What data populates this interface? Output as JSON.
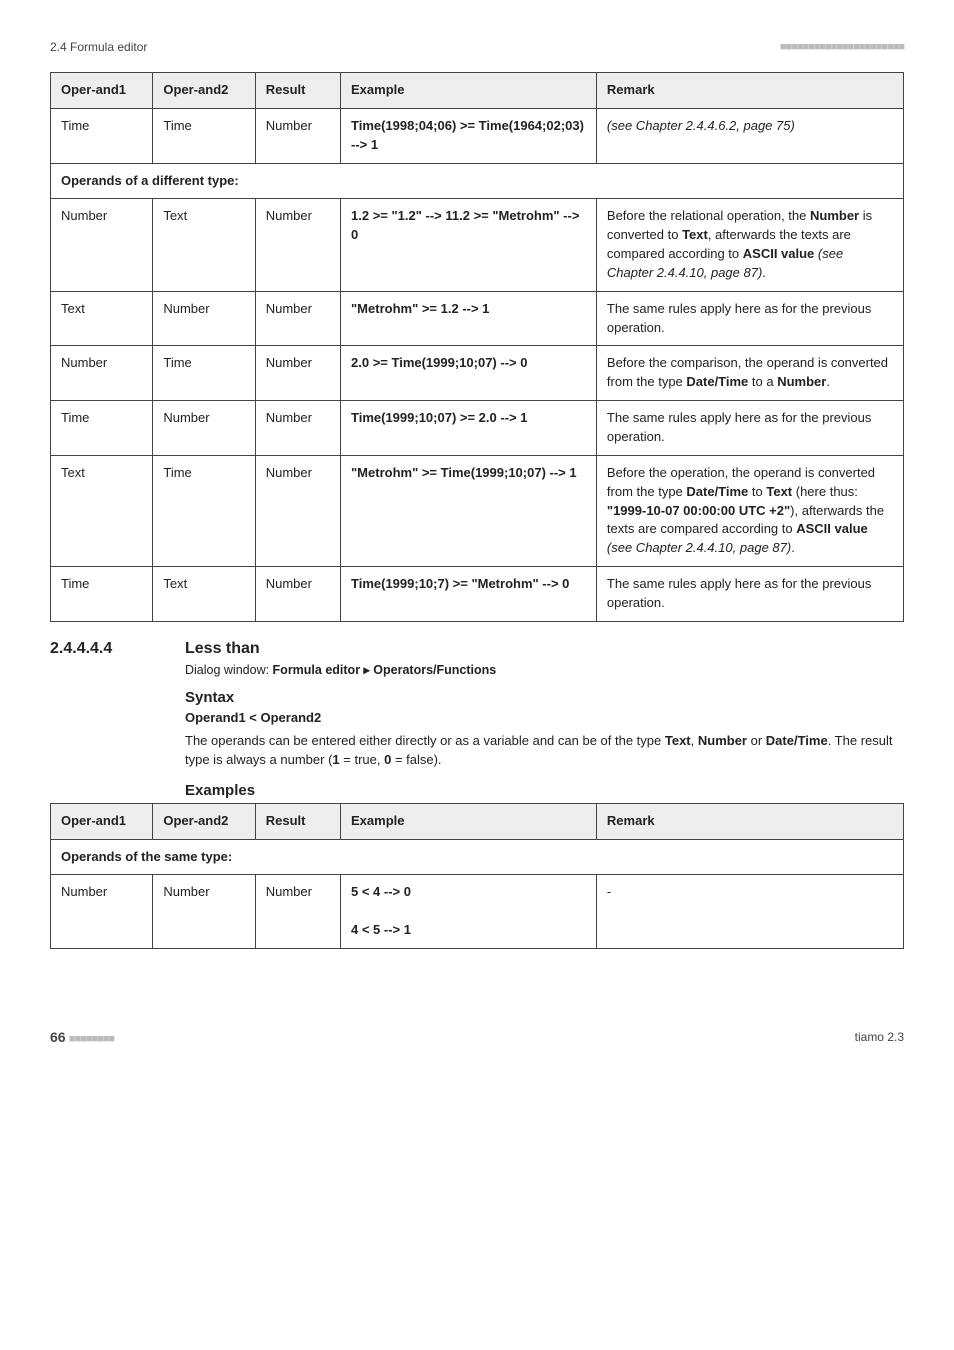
{
  "header": {
    "left": "2.4 Formula editor",
    "squares": "■■■■■■■■■■■■■■■■■■■■■■"
  },
  "table1": {
    "headers": {
      "op1": "Oper-and1",
      "op2": "Oper-and2",
      "result": "Result",
      "example": "Example",
      "remark": "Remark"
    },
    "rows": [
      {
        "op1": "Time",
        "op2": "Time",
        "result": "Number",
        "example_html": "<span class='bold'>Time(1998;04;06) &gt;= Time(1964;02;03) --&gt; 1</span>",
        "remark_html": "<span class='italic'>(see Chapter 2.4.4.6.2, page 75)</span>"
      }
    ],
    "section2": "Operands of a different type:",
    "rows2": [
      {
        "op1": "Number",
        "op2": "Text",
        "result": "Number",
        "example_html": "<span class='bold'>1.2 &gt;= \"1.2\" --&gt; 11.2 &gt;= \"Metrohm\" --&gt; 0</span>",
        "remark_html": "Before the relational operation, the <span class='bold'>Number</span> is converted to <span class='bold'>Text</span>, afterwards the texts are compared according to <span class='bold'>ASCII value</span> <span class='italic'>(see Chapter 2.4.4.10, page 87)</span>."
      },
      {
        "op1": "Text",
        "op2": "Number",
        "result": "Number",
        "example_html": "<span class='bold'>\"Metrohm\" &gt;= 1.2 --&gt; 1</span>",
        "remark_html": "The same rules apply here as for the previous operation."
      },
      {
        "op1": "Number",
        "op2": "Time",
        "result": "Number",
        "example_html": "<span class='bold'>2.0 &gt;= Time(1999;10;07) --&gt; 0</span>",
        "remark_html": "Before the comparison, the operand is converted from the type <span class='bold'>Date/Time</span> to a <span class='bold'>Number</span>."
      },
      {
        "op1": "Time",
        "op2": "Number",
        "result": "Number",
        "example_html": "<span class='bold'>Time(1999;10;07) &gt;= 2.0 --&gt; 1</span>",
        "remark_html": "The same rules apply here as for the previous operation."
      },
      {
        "op1": "Text",
        "op2": "Time",
        "result": "Number",
        "example_html": "<span class='bold'>\"Metrohm\" &gt;= Time(1999;10;07) --&gt; 1</span>",
        "remark_html": "Before the operation, the operand is converted from the type <span class='bold'>Date/Time</span> to <span class='bold'>Text</span> (here thus: <span class='bold'>\"1999-10-07 00:00:00 UTC +2\"</span>), afterwards the texts are compared according to <span class='bold'>ASCII value</span> <span class='italic'>(see Chapter 2.4.4.10, page 87)</span>."
      },
      {
        "op1": "Time",
        "op2": "Text",
        "result": "Number",
        "example_html": "<span class='bold'>Time(1999;10;7) &gt;= \"Metrohm\" --&gt; 0</span>",
        "remark_html": "The same rules apply here as for the previous operation."
      }
    ]
  },
  "section": {
    "num": "2.4.4.4.4",
    "title": "Less than",
    "dialog_prefix": "Dialog window: ",
    "dialog_bold": "Formula editor ▸ Operators/Functions",
    "syntax_head": "Syntax",
    "syntax_line": "Operand1 < Operand2",
    "para_html": "The operands can be entered either directly or as a variable and can be of the type <span class='bold'>Text</span>, <span class='bold'>Number</span> or <span class='bold'>Date/Time</span>. The result type is always a number (<span class='bold'>1</span> = true, <span class='bold'>0</span> = false).",
    "examples_head": "Examples"
  },
  "table2": {
    "headers": {
      "op1": "Oper-and1",
      "op2": "Oper-and2",
      "result": "Result",
      "example": "Example",
      "remark": "Remark"
    },
    "section": "Operands of the same type:",
    "rows": [
      {
        "op1": "Number",
        "op2": "Number",
        "result": "Number",
        "example_html": "<span class='bold'>5 &lt; 4 --&gt; 0</span><br><br><span class='bold'>4 &lt; 5 --&gt; 1</span>",
        "remark_html": "-"
      }
    ]
  },
  "footer": {
    "num": "66",
    "squares": "■■■■■■■■",
    "right": "tiamo 2.3"
  }
}
